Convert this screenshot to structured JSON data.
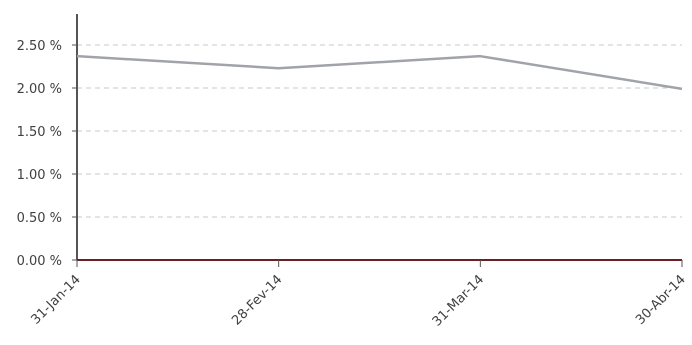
{
  "chart_data": {
    "type": "line",
    "categories": [
      "31-Jan-14",
      "28-Fev-14",
      "31-Mar-14",
      "30-Abr-14"
    ],
    "series": [
      {
        "values": [
          2.37,
          2.23,
          2.37,
          1.99
        ]
      }
    ],
    "y_ticks": [
      "0.00 %",
      "0.50 %",
      "1.00 %",
      "1.50 %",
      "2.00 %",
      "2.50 %"
    ],
    "ylim": [
      0,
      2.5
    ],
    "grid": true,
    "colors": {
      "line": "#a0a4a8",
      "grid": "#c8c8c8",
      "baseline": "#6b1f24",
      "axis": "#555555"
    }
  }
}
